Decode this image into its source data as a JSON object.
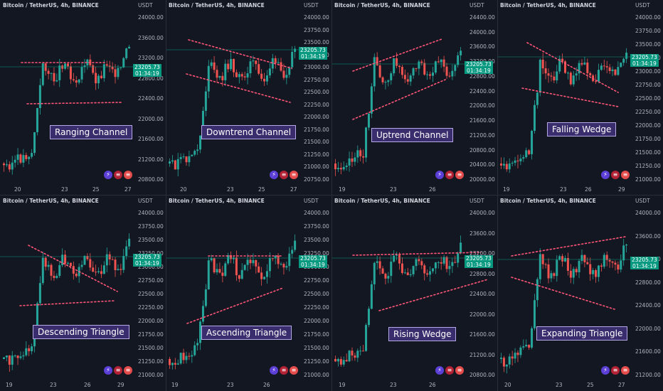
{
  "colors": {
    "bg": "#131722",
    "up": "#26a69a",
    "down": "#ef5350",
    "trend": "#ff5577",
    "price_tag": "#089981"
  },
  "panels": [
    {
      "title": "Bitcoin / TetherUS, 4h, BINANCE",
      "pattern": "Ranging Channel",
      "usdt": "USDT",
      "price": "23205.73",
      "countdown": "01:34:19",
      "yticks": [
        "24000.00",
        "23600.00",
        "23200.00",
        "22800.00",
        "22400.00",
        "22000.00",
        "21600.00",
        "21200.00",
        "20800.00"
      ],
      "xticks": [
        "20",
        "23",
        "25",
        "27"
      ]
    },
    {
      "title": "Bitcoin / TetherUS, 4h, BINANCE",
      "pattern": "Downtrend Channel",
      "usdt": "USDT",
      "price": "23205.73",
      "countdown": "01:34:19",
      "yticks": [
        "24000.00",
        "23750.00",
        "23500.00",
        "23250.00",
        "23000.00",
        "22750.00",
        "22500.00",
        "22250.00",
        "22000.00",
        "21750.00",
        "21500.00",
        "21250.00",
        "21000.00",
        "20750.00"
      ],
      "xticks": [
        "20",
        "23",
        "25",
        "27"
      ]
    },
    {
      "title": "Bitcoin / TetherUS, 4h, BINANCE",
      "pattern": "Uptrend Channel",
      "usdt": "USDT",
      "price": "23205.73",
      "countdown": "01:34:19",
      "yticks": [
        "24400.00",
        "24000.00",
        "23600.00",
        "23200.00",
        "22800.00",
        "22400.00",
        "22000.00",
        "21600.00",
        "21200.00",
        "20800.00",
        "20400.00",
        "20000.00"
      ],
      "xticks": [
        "19",
        "23",
        "26"
      ]
    },
    {
      "title": "Bitcoin / TetherUS, 4h, BINANCE",
      "pattern": "Falling Wedge",
      "usdt": "USDT",
      "price": "23205.73",
      "countdown": "01:34:19",
      "yticks": [
        "24000.00",
        "23750.00",
        "23500.00",
        "23250.00",
        "23000.00",
        "22750.00",
        "22500.00",
        "22250.00",
        "22000.00",
        "21750.00",
        "21500.00",
        "21250.00",
        "21000.00"
      ],
      "xticks": [
        "19",
        "23",
        "26",
        "29"
      ]
    },
    {
      "title": "Bitcoin / TetherUS, 4h, BINANCE",
      "pattern": "Descending Triangle",
      "usdt": "USDT",
      "price": "23205.73",
      "countdown": "01:34:19",
      "yticks": [
        "24000.00",
        "23750.00",
        "23500.00",
        "23250.00",
        "23000.00",
        "22750.00",
        "22500.00",
        "22250.00",
        "22000.00",
        "21750.00",
        "21500.00",
        "21250.00",
        "21000.00"
      ],
      "xticks": [
        "19",
        "23",
        "26",
        "29"
      ]
    },
    {
      "title": "Bitcoin / TetherUS, 4h, BINANCE",
      "pattern": "Ascending Triangle",
      "usdt": "USDT",
      "price": "23205.73",
      "countdown": "01:34:19",
      "yticks": [
        "24000.00",
        "23750.00",
        "23500.00",
        "23250.00",
        "23000.00",
        "22750.00",
        "22500.00",
        "22250.00",
        "22000.00",
        "21750.00",
        "21500.00",
        "21250.00",
        "21000.00"
      ],
      "xticks": [
        "19",
        "23",
        "26"
      ]
    },
    {
      "title": "Bitcoin / TetherUS, 4h, BINANCE",
      "pattern": "Rising Wedge",
      "usdt": "USDT",
      "price": "23205.73",
      "countdown": "01:34:19",
      "yticks": [
        "24000.00",
        "23600.00",
        "23200.00",
        "22800.00",
        "22400.00",
        "22000.00",
        "21600.00",
        "21200.00",
        "20800.00"
      ],
      "xticks": [
        "19",
        "23",
        "26"
      ]
    },
    {
      "title": "Bitcoin / TetherUS, 4h, BINANCE",
      "pattern": "Expanding Triangle",
      "usdt": "USDT",
      "price": "23205.73",
      "countdown": "01:34:19",
      "yticks": [
        "24000.00",
        "23600.00",
        "23200.00",
        "22800.00",
        "22400.00",
        "22000.00",
        "21600.00",
        "21200.00"
      ],
      "xticks": [
        "20",
        "23",
        "25",
        "27"
      ]
    }
  ],
  "chart_data": [
    {
      "type": "candlestick",
      "title": "Bitcoin / TetherUS, 4h, BINANCE",
      "annotation": "Ranging Channel",
      "ylim": [
        20600,
        24200
      ],
      "last_price": 23205.73
    },
    {
      "type": "candlestick",
      "title": "Bitcoin / TetherUS, 4h, BINANCE",
      "annotation": "Downtrend Channel",
      "ylim": [
        20650,
        24050
      ],
      "last_price": 23205.73
    },
    {
      "type": "candlestick",
      "title": "Bitcoin / TetherUS, 4h, BINANCE",
      "annotation": "Uptrend Channel",
      "ylim": [
        19900,
        24500
      ],
      "last_price": 23205.73
    },
    {
      "type": "candlestick",
      "title": "Bitcoin / TetherUS, 4h, BINANCE",
      "annotation": "Falling Wedge",
      "ylim": [
        20900,
        24050
      ],
      "last_price": 23205.73
    },
    {
      "type": "candlestick",
      "title": "Bitcoin / TetherUS, 4h, BINANCE",
      "annotation": "Descending Triangle",
      "ylim": [
        20900,
        24050
      ],
      "last_price": 23205.73
    },
    {
      "type": "candlestick",
      "title": "Bitcoin / TetherUS, 4h, BINANCE",
      "annotation": "Ascending Triangle",
      "ylim": [
        20900,
        24050
      ],
      "last_price": 23205.73
    },
    {
      "type": "candlestick",
      "title": "Bitcoin / TetherUS, 4h, BINANCE",
      "annotation": "Rising Wedge",
      "ylim": [
        20700,
        24100
      ],
      "last_price": 23205.73
    },
    {
      "type": "candlestick",
      "title": "Bitcoin / TetherUS, 4h, BINANCE",
      "annotation": "Expanding Triangle",
      "ylim": [
        21000,
        24100
      ],
      "last_price": 23205.73
    }
  ]
}
